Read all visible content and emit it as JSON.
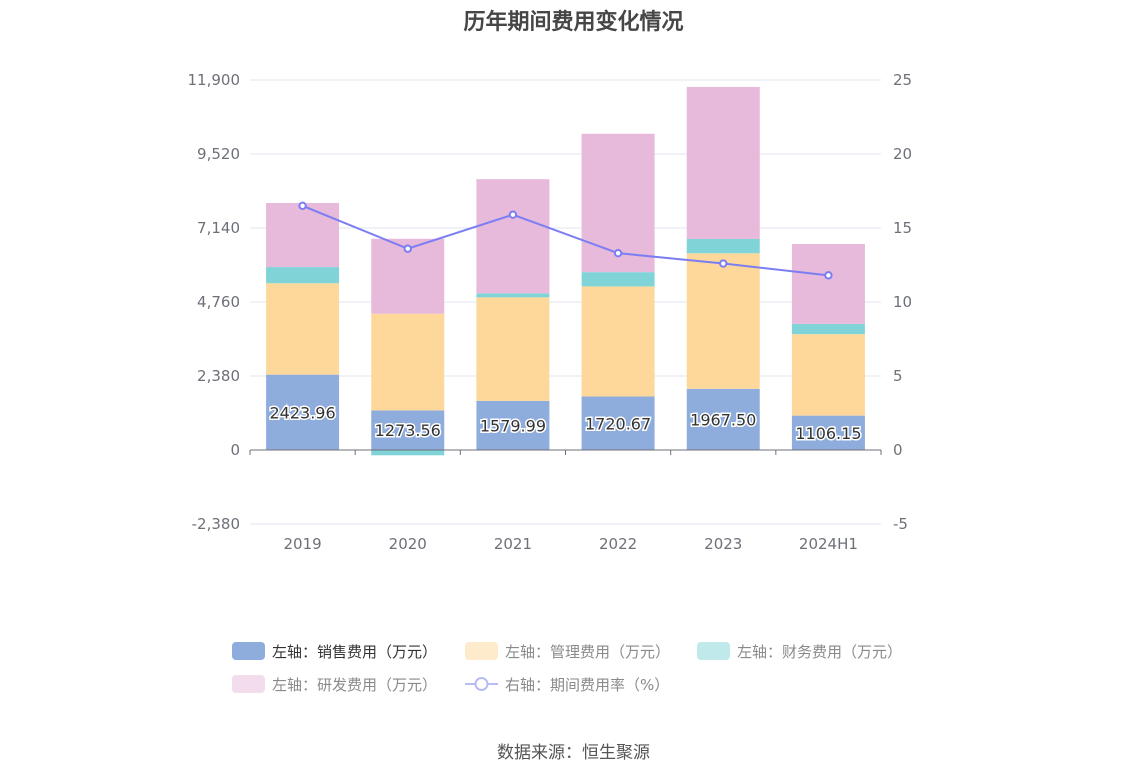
{
  "title": "历年期间费用变化情况",
  "source": "数据来源：恒生聚源",
  "colors": {
    "sales": "#8eaddc",
    "admin": "#fed89a",
    "finance": "#80d4d8",
    "rd": "#e7b9da",
    "rate": "#7b7ef2",
    "grid": "#e0e6f1",
    "axis": "#6e7079"
  },
  "chart_data": {
    "type": "bar",
    "stacked": true,
    "categories": [
      "2019",
      "2020",
      "2021",
      "2022",
      "2023",
      "2024H1"
    ],
    "left_axis": {
      "ylim": [
        -2380,
        11900
      ],
      "ticks": [
        -2380,
        0,
        2380,
        4760,
        7140,
        9520,
        11900
      ],
      "tick_labels": [
        "-2,380",
        "0",
        "2,380",
        "4,760",
        "7,140",
        "9,520",
        "11,900"
      ]
    },
    "right_axis": {
      "ylim": [
        -5,
        25
      ],
      "ticks": [
        -5,
        0,
        5,
        10,
        15,
        20,
        25
      ],
      "tick_labels": [
        "-5",
        "0",
        "5",
        "10",
        "15",
        "20",
        "25"
      ]
    },
    "series": [
      {
        "name": "左轴：销售费用（万元）",
        "key": "sales",
        "axis": "left",
        "values": [
          2423.96,
          1273.56,
          1579.99,
          1720.67,
          1967.5,
          1106.15
        ],
        "labels": [
          "2423.96",
          "1273.56",
          "1579.99",
          "1720.67",
          "1967.50",
          "1106.15"
        ]
      },
      {
        "name": "左轴：管理费用（万元）",
        "key": "admin",
        "axis": "left",
        "values": [
          2940,
          3110,
          3330,
          3540,
          4360,
          2620
        ]
      },
      {
        "name": "左轴：财务费用（万元）",
        "key": "finance",
        "axis": "left",
        "values": [
          520,
          -170,
          130,
          460,
          460,
          330
        ]
      },
      {
        "name": "左轴：研发费用（万元）",
        "key": "rd",
        "axis": "left",
        "values": [
          2060,
          2410,
          3670,
          4450,
          4890,
          2570
        ]
      },
      {
        "name": "右轴：期间费用率（%）",
        "key": "rate",
        "axis": "right",
        "type": "line",
        "values": [
          16.5,
          13.6,
          15.9,
          13.3,
          12.6,
          11.8
        ]
      }
    ],
    "legend_position": "bottom",
    "grid": true
  }
}
